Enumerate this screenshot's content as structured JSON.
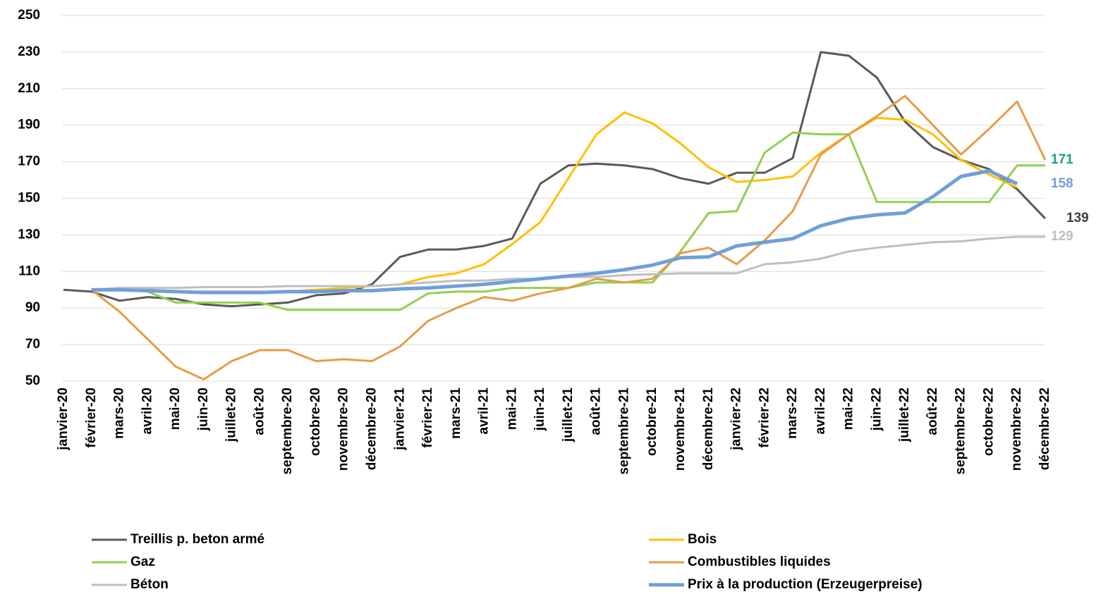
{
  "chart_data": {
    "type": "line",
    "categories": [
      "janvier-20",
      "février-20",
      "mars-20",
      "avril-20",
      "mai-20",
      "juin-20",
      "juillet-20",
      "août-20",
      "septembre-20",
      "octobre-20",
      "novembre-20",
      "décembre-20",
      "janvier-21",
      "février-21",
      "mars-21",
      "avril-21",
      "mai-21",
      "juin-21",
      "juillet-21",
      "août-21",
      "septembre-21",
      "octobre-21",
      "novembre-21",
      "décembre-21",
      "janvier-22",
      "février-22",
      "mars-22",
      "avril-22",
      "mai-22",
      "juin-22",
      "juillet-22",
      "août-22",
      "septembre-22",
      "octobre-22",
      "novembre-22",
      "décembre-22"
    ],
    "series": [
      {
        "name": "Treillis p. beton armé",
        "color": "#595959",
        "values": [
          100,
          99,
          94,
          96,
          95,
          92,
          91,
          92,
          93,
          97,
          98,
          103,
          118,
          122,
          122,
          124,
          128,
          158,
          168,
          169,
          168,
          166,
          161,
          158,
          164,
          164,
          172,
          230,
          228,
          216,
          192,
          178,
          171,
          166,
          155,
          139
        ]
      },
      {
        "name": "Bois",
        "color": "#ffc000",
        "values": [
          null,
          100,
          100,
          100,
          99,
          99,
          99,
          99,
          99,
          100,
          101,
          102,
          103,
          107,
          109,
          114,
          125,
          137,
          161,
          185,
          197,
          191,
          180,
          167,
          159,
          160,
          162,
          175,
          185,
          194,
          193,
          185,
          171,
          163,
          156,
          null
        ]
      },
      {
        "name": "Gaz",
        "color": "#92d050",
        "values": [
          null,
          100,
          100,
          99,
          93,
          93,
          93,
          93,
          89,
          89,
          89,
          89,
          89,
          98,
          99,
          99,
          101,
          101,
          101,
          104,
          104,
          104,
          121,
          142,
          143,
          175,
          186,
          185,
          185,
          148,
          148,
          148,
          148,
          148,
          168,
          168
        ]
      },
      {
        "name": "Combustibles liquides",
        "color": "#e69c47",
        "values": [
          null,
          100,
          88,
          73,
          58,
          51,
          61,
          67,
          67,
          61,
          62,
          61,
          69,
          83,
          90,
          96,
          94,
          98,
          101,
          106,
          104,
          106,
          120,
          123,
          114,
          127,
          143,
          174,
          185,
          195,
          206,
          190,
          174,
          188,
          203,
          171
        ]
      },
      {
        "name": "Béton",
        "color": "#bfbfbf",
        "values": [
          null,
          100,
          101,
          101,
          101,
          101.5,
          101.5,
          101.5,
          102,
          102,
          102,
          102,
          103,
          104,
          105,
          105,
          106,
          106,
          107,
          107,
          108,
          108.5,
          109,
          109,
          109,
          114,
          115,
          117,
          121,
          123,
          124.5,
          126,
          126.5,
          128,
          129,
          129
        ]
      },
      {
        "name": "Prix à la production (Erzeugerpreise)",
        "color": "#6f9fd8",
        "values": [
          null,
          100,
          100,
          99.5,
          99,
          98.5,
          98.5,
          98.5,
          99,
          99,
          99.5,
          99.5,
          100.5,
          101,
          102,
          103,
          104.5,
          106,
          107.5,
          109,
          111,
          113.5,
          117.5,
          118,
          124,
          126,
          128,
          135,
          139,
          141,
          142,
          151,
          162,
          165,
          158,
          null
        ]
      }
    ],
    "annotations": [
      {
        "value": 171,
        "color": "#16a085"
      },
      {
        "value": 158,
        "color": "#6f9fd8"
      },
      {
        "value": 139,
        "color": "#404040"
      },
      {
        "value": 129,
        "color": "#bfbfbf"
      }
    ],
    "ylim": [
      50,
      250
    ],
    "yticks": [
      50,
      70,
      90,
      110,
      130,
      150,
      170,
      190,
      210,
      230,
      250
    ],
    "grid": true
  }
}
